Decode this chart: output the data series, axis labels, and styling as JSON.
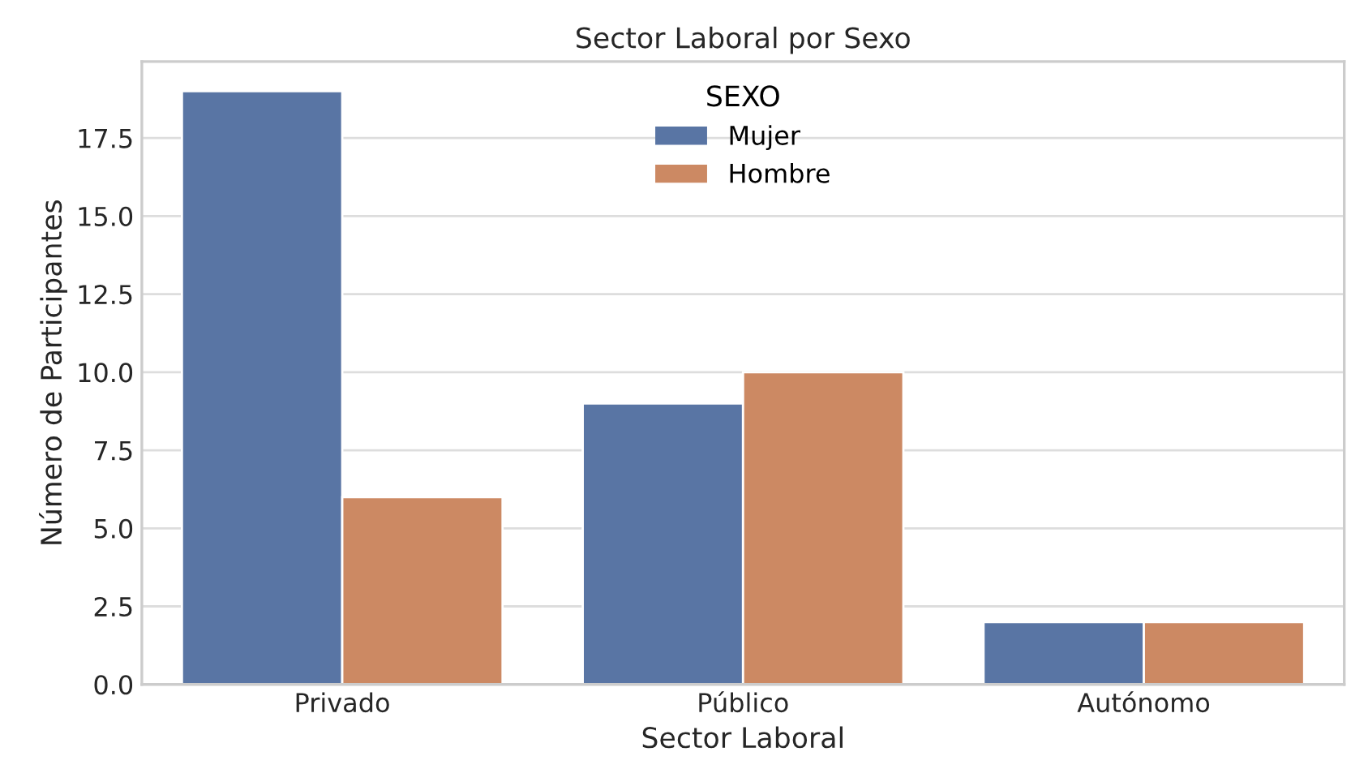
{
  "chart_data": {
    "type": "bar",
    "title": "Sector Laboral por Sexo",
    "xlabel": "Sector Laboral",
    "ylabel": "Número de Participantes",
    "legend_title": "SEXO",
    "categories": [
      "Privado",
      "Público",
      "Autónomo"
    ],
    "series": [
      {
        "name": "Mujer",
        "color": "#5975a4",
        "values": [
          19,
          9,
          2
        ]
      },
      {
        "name": "Hombre",
        "color": "#cc8963",
        "values": [
          6,
          10,
          2
        ]
      }
    ],
    "ylim": [
      0,
      19.95
    ],
    "yticks": [
      {
        "value": 0,
        "label": "0.0"
      },
      {
        "value": 2.5,
        "label": "2.5"
      },
      {
        "value": 5,
        "label": "5.0"
      },
      {
        "value": 7.5,
        "label": "7.5"
      },
      {
        "value": 10,
        "label": "10.0"
      },
      {
        "value": 12.5,
        "label": "12.5"
      },
      {
        "value": 15,
        "label": "15.0"
      },
      {
        "value": 17.5,
        "label": "17.5"
      }
    ],
    "grid": "y",
    "legend": "top"
  }
}
